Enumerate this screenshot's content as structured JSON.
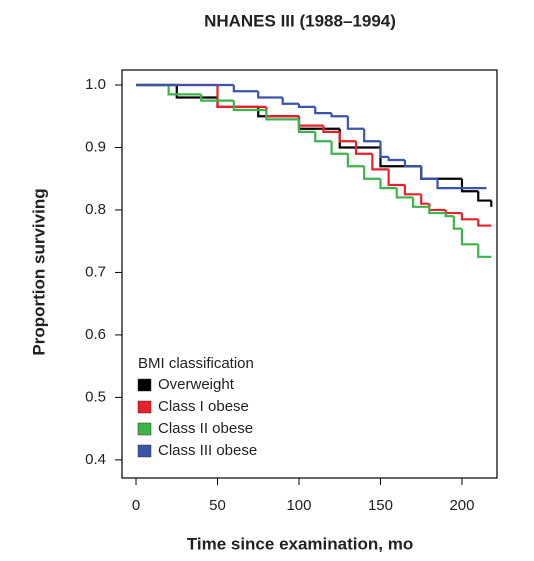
{
  "chart_data": {
    "type": "line",
    "step": true,
    "title": "NHANES III (1988–1994)",
    "xlabel": "Time since examination, mo",
    "ylabel": "Proportion surviving",
    "legend_title": "BMI classification",
    "legend": "lower left",
    "xlim": [
      -8.6,
      221.5
    ],
    "xticks": [
      0,
      50,
      100,
      150,
      200
    ],
    "ylim": [
      0.371,
      1.024
    ],
    "yticks": [
      0.4,
      0.5,
      0.6,
      0.7,
      0.8,
      0.9,
      {
        "value": 1,
        "label": "1.0"
      }
    ],
    "series": [
      {
        "name": "Overweight",
        "color": "#000000",
        "x": [
          0,
          25,
          50,
          75,
          100,
          125,
          150,
          175,
          200,
          210,
          218
        ],
        "values": [
          1.0,
          0.98,
          0.965,
          0.95,
          0.93,
          0.9,
          0.87,
          0.85,
          0.83,
          0.815,
          0.805
        ]
      },
      {
        "name": "Class I obese",
        "color": "#e8202a",
        "x": [
          0,
          50,
          80,
          100,
          115,
          125,
          135,
          145,
          155,
          165,
          175,
          180,
          190,
          200,
          210,
          218
        ],
        "values": [
          1.0,
          0.965,
          0.95,
          0.935,
          0.925,
          0.91,
          0.89,
          0.865,
          0.84,
          0.825,
          0.81,
          0.8,
          0.795,
          0.785,
          0.775,
          0.775
        ]
      },
      {
        "name": "Class II obese",
        "color": "#3cb44a",
        "x": [
          0,
          20,
          40,
          60,
          80,
          100,
          110,
          120,
          130,
          140,
          150,
          160,
          170,
          180,
          190,
          195,
          200,
          210,
          218
        ],
        "values": [
          1.0,
          0.985,
          0.975,
          0.96,
          0.945,
          0.925,
          0.91,
          0.89,
          0.87,
          0.85,
          0.835,
          0.82,
          0.805,
          0.795,
          0.79,
          0.77,
          0.745,
          0.725,
          0.725
        ]
      },
      {
        "name": "Class III obese",
        "color": "#3a55a8",
        "x": [
          0,
          40,
          60,
          75,
          90,
          100,
          110,
          120,
          130,
          140,
          150,
          155,
          165,
          175,
          185,
          200,
          215
        ],
        "values": [
          1.0,
          1.0,
          0.99,
          0.98,
          0.97,
          0.965,
          0.955,
          0.95,
          0.93,
          0.91,
          0.885,
          0.88,
          0.87,
          0.85,
          0.835,
          0.835,
          0.835
        ]
      }
    ]
  }
}
